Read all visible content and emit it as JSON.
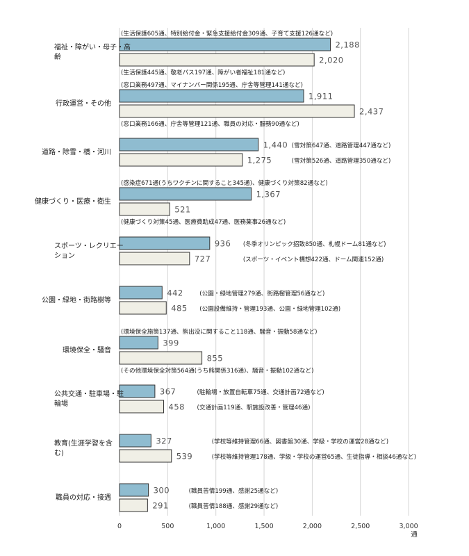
{
  "chart_data": {
    "type": "bar",
    "orientation": "horizontal",
    "unit": "通",
    "xlim": [
      0,
      3000
    ],
    "xticks": [
      "0",
      "500",
      "1,000",
      "1,500",
      "2,000",
      "2,500",
      "3,000"
    ],
    "grid": true,
    "colors": {
      "series_a": "#8fbcd0",
      "series_b": "#f0efe6",
      "edge": "#333333"
    },
    "series": [
      {
        "values": [
          2188,
          1911,
          1440,
          1367,
          936,
          442,
          399,
          367,
          327,
          300
        ]
      },
      {
        "values": [
          2020,
          2437,
          1275,
          521,
          727,
          485,
          855,
          458,
          539,
          291
        ]
      }
    ],
    "categories": [
      {
        "label_lines": [
          "福祉・障がい・母子・高",
          "齢"
        ],
        "values": [
          2188,
          2020
        ],
        "value_labels": [
          "2,188",
          "2,020"
        ],
        "notes": [
          "(生活保護605通、特別給付金・緊急支援給付金309通、子育て支援126通など)",
          "(生活保護445通、敬老パス197通、障がい者福祉181通など)"
        ],
        "note_pos": "above-below"
      },
      {
        "label_lines": [
          "行政運営・その他"
        ],
        "values": [
          1911,
          2437
        ],
        "value_labels": [
          "1,911",
          "2,437"
        ],
        "notes": [
          "(窓口業務497通、マイナンバー関係195通、庁舎等管理141通など)",
          "(窓口業務166通、庁舎等管理121通、職員の対応・服務90通など)"
        ],
        "note_pos": "above-below"
      },
      {
        "label_lines": [
          "道路・除雪・橋・河川"
        ],
        "values": [
          1440,
          1275
        ],
        "value_labels": [
          "1,440",
          "1,275"
        ],
        "notes": [
          "(雪対策647通、道路管理447通など)",
          "(雪対策526通、道路管理350通など)"
        ],
        "note_pos": "right"
      },
      {
        "label_lines": [
          "健康づくり・医療・衛生"
        ],
        "values": [
          1367,
          521
        ],
        "value_labels": [
          "1,367",
          "521"
        ],
        "notes": [
          "(感染症671通(うちワクチンに関すること345通)、健康づくり対策82通など)",
          "(健康づくり対策45通、医療費助成47通、医務薬事26通など)"
        ],
        "note_pos": "above-below"
      },
      {
        "label_lines": [
          "スポーツ・レクリエー",
          "ション"
        ],
        "values": [
          936,
          727
        ],
        "value_labels": [
          "936",
          "727"
        ],
        "notes": [
          "(冬季オリンピック招致850通、札幌ドーム81通など)",
          "(スポーツ・イベント構想422通、ドーム関連152通)"
        ],
        "note_pos": "right"
      },
      {
        "label_lines": [
          "公園・緑地・街路樹等"
        ],
        "values": [
          442,
          485
        ],
        "value_labels": [
          "442",
          "485"
        ],
        "notes": [
          "(公園・緑地管理279通、街路樹管理56通など)",
          "(公園設備維持・管理193通、公園・緑地管理102通)"
        ],
        "note_pos": "right"
      },
      {
        "label_lines": [
          "環境保全・騒音"
        ],
        "values": [
          399,
          855
        ],
        "value_labels": [
          "399",
          "855"
        ],
        "notes": [
          "(環境保全施策137通、熊出没に関すること118通、騒音・振動58通など)",
          "(その他環境保全対策564通(うち熊関係316通)、騒音・振動102通など)"
        ],
        "note_pos": "above-below"
      },
      {
        "label_lines": [
          "公共交通・駐車場・駐",
          "輪場"
        ],
        "values": [
          367,
          458
        ],
        "value_labels": [
          "367",
          "458"
        ],
        "notes": [
          "(駐輪場・放置自転車75通、交通計画72通など)",
          "(交通計画119通、駅施設改善・管理46通)"
        ],
        "note_pos": "right"
      },
      {
        "label_lines": [
          "教育(生涯学習を含",
          "む)"
        ],
        "values": [
          327,
          539
        ],
        "value_labels": [
          "327",
          "539"
        ],
        "notes": [
          "(学校等維持管理66通、図書館30通、学級・学校の運営28通など)",
          "(学校等維持管理178通、学級・学校の運営65通、生徒指導・相談46通など)"
        ],
        "note_pos": "right"
      },
      {
        "label_lines": [
          "職員の対応・接遇"
        ],
        "values": [
          300,
          291
        ],
        "value_labels": [
          "300",
          "291"
        ],
        "notes": [
          "(職員苦情199通、感謝25通など)",
          "(職員苦情188通、感謝29通など)"
        ],
        "note_pos": "right"
      }
    ]
  }
}
